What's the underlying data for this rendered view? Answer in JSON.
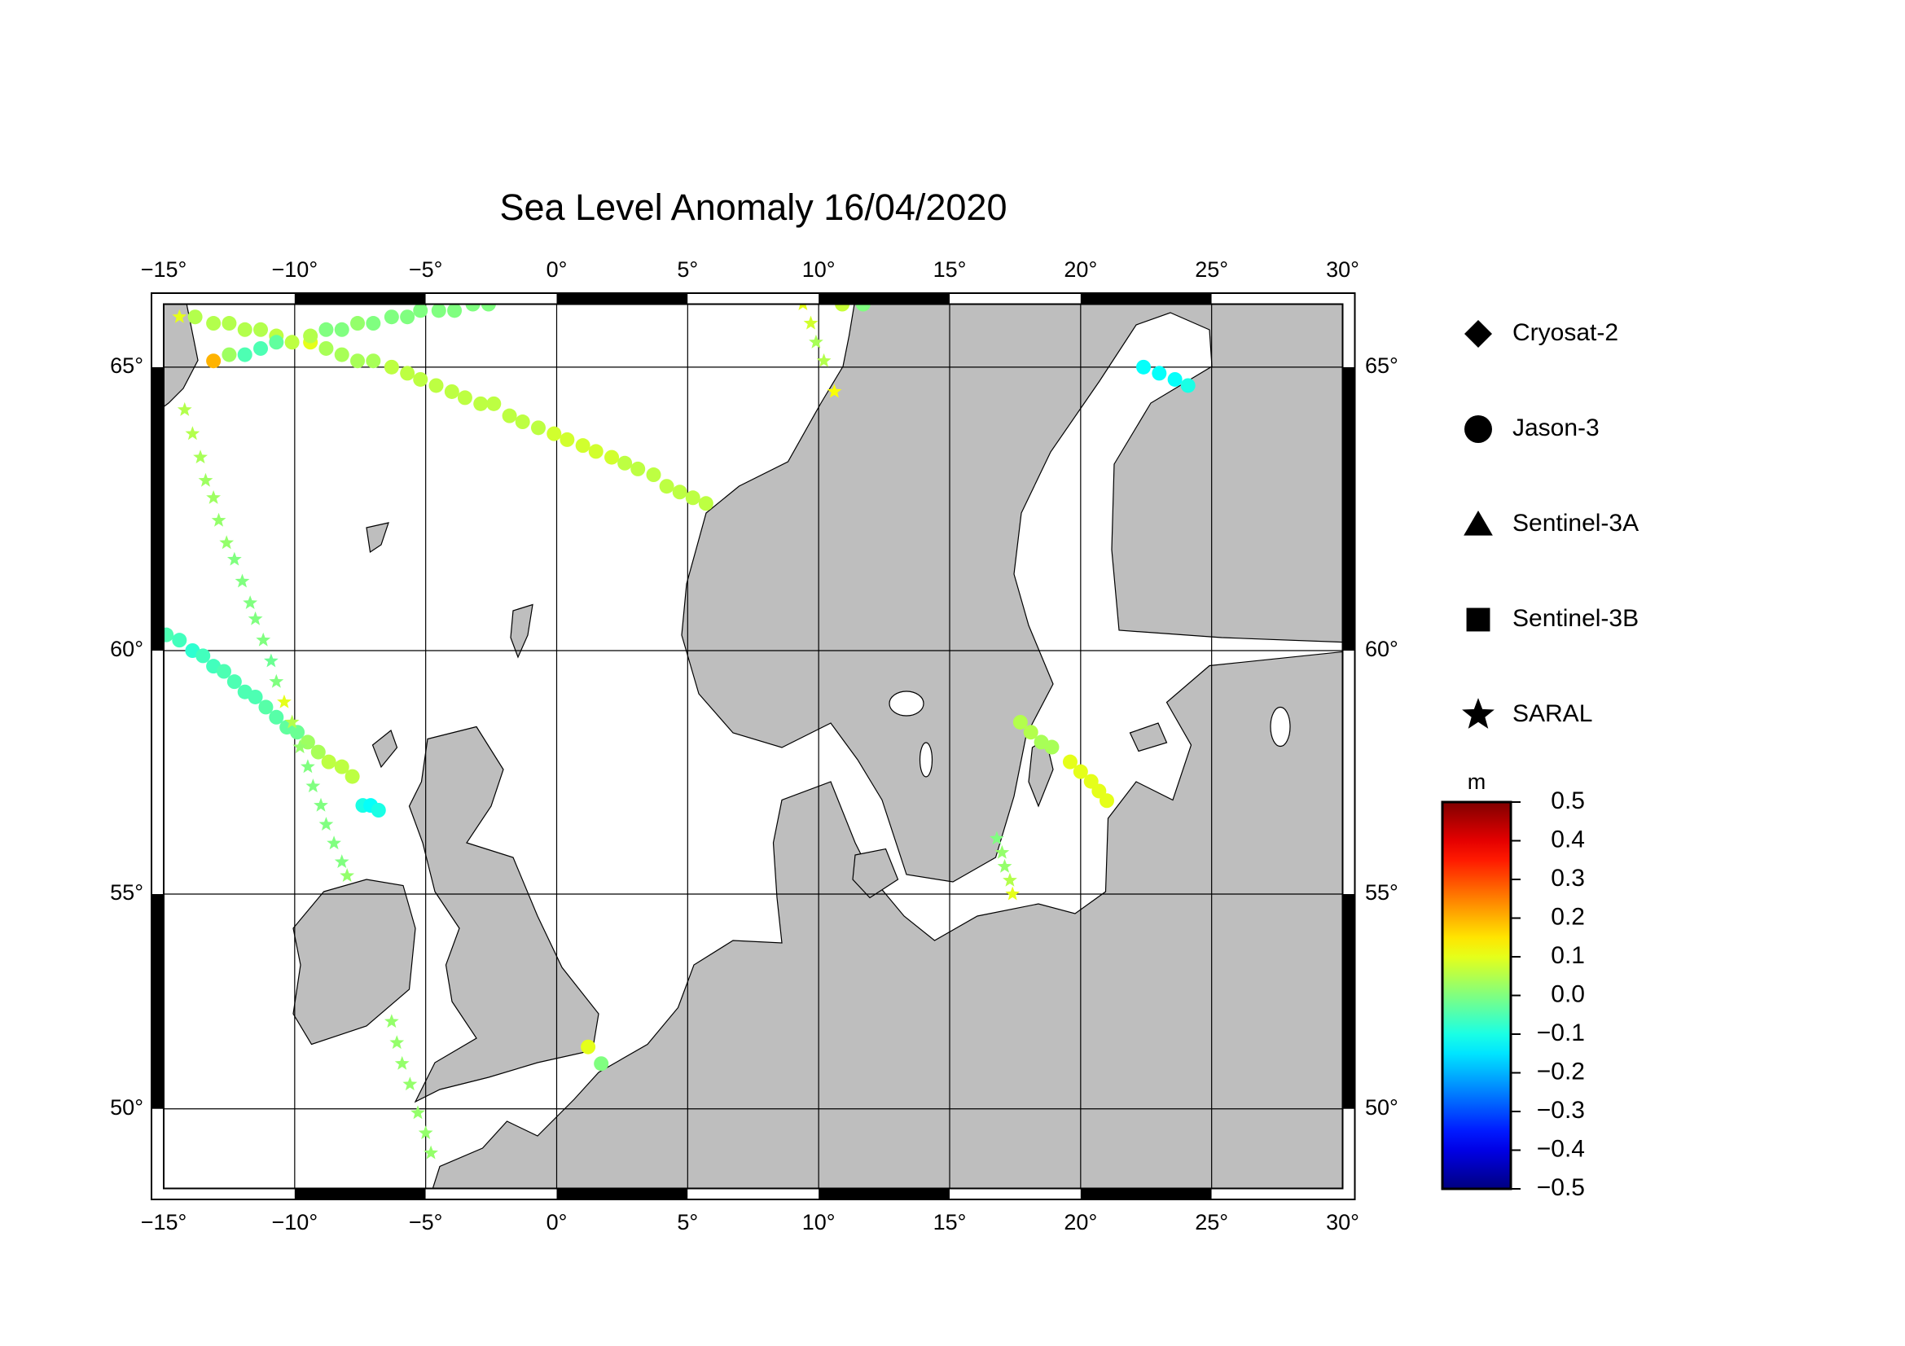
{
  "chart_data": {
    "type": "map",
    "projection": "mercator",
    "title": "Sea Level Anomaly 16/04/2020",
    "xlim": [
      -15,
      30
    ],
    "ylim": [
      48,
      66
    ],
    "xticks": [
      {
        "value": -15,
        "label": "−15°"
      },
      {
        "value": -10,
        "label": "−10°"
      },
      {
        "value": -5,
        "label": "−5°"
      },
      {
        "value": 0,
        "label": "0°"
      },
      {
        "value": 5,
        "label": "5°"
      },
      {
        "value": 10,
        "label": "10°"
      },
      {
        "value": 15,
        "label": "15°"
      },
      {
        "value": 20,
        "label": "20°"
      },
      {
        "value": 25,
        "label": "25°"
      },
      {
        "value": 30,
        "label": "30°"
      }
    ],
    "yticks": [
      {
        "value": 50,
        "label": "50°"
      },
      {
        "value": 55,
        "label": "55°"
      },
      {
        "value": 60,
        "label": "60°"
      },
      {
        "value": 65,
        "label": "65°"
      }
    ],
    "grid": true,
    "legend": "right",
    "colormap": "jet",
    "clim": [
      -0.5,
      0.5
    ],
    "colorbar_label": "m",
    "colorbar_ticks": [
      0.5,
      0.4,
      0.3,
      0.2,
      0.1,
      {
        "value": 0,
        "label": "0.0"
      },
      {
        "value": -0.1,
        "label": "−0.1"
      },
      {
        "value": -0.2,
        "label": "−0.2"
      },
      {
        "value": -0.3,
        "label": "−0.3"
      },
      {
        "value": -0.4,
        "label": "−0.4"
      },
      {
        "value": -0.5,
        "label": "−0.5"
      }
    ],
    "series": [
      {
        "name": "Cryosat-2",
        "marker": "diamond",
        "x": [],
        "y": [],
        "values": []
      },
      {
        "name": "Jason-3",
        "marker": "circle",
        "x": [
          -13.8,
          -13.1,
          -12.5,
          -11.9,
          -11.3,
          -10.7,
          -10.1,
          -9.4,
          -8.8,
          -8.2,
          -7.6,
          -7.0,
          -6.3,
          -5.7,
          -5.2,
          -4.6,
          -4.0,
          -3.5,
          -2.9,
          -2.4,
          -1.8,
          -1.3,
          -0.7,
          -0.1,
          0.4,
          1.0,
          1.5,
          2.1,
          2.6,
          3.1,
          3.7,
          4.2,
          4.7,
          5.2,
          5.7,
          -13.1,
          -12.5,
          -11.9,
          -11.3,
          -10.7,
          -9.4,
          -8.8,
          -8.2,
          -7.6,
          -7.0,
          -6.3,
          -5.7,
          -5.2,
          -4.5,
          -3.9,
          -3.2,
          -2.6,
          -14.9,
          -14.4,
          -13.9,
          -13.5,
          -13.1,
          -12.7,
          -12.3,
          -11.9,
          -11.5,
          -11.1,
          -10.7,
          -10.3,
          -9.9,
          -9.5,
          -9.1,
          -8.7,
          -8.2,
          -7.8,
          -7.4,
          -7.1,
          -6.8,
          10.9,
          11.7,
          22.4,
          23.0,
          23.6,
          24.1,
          17.7,
          18.1,
          18.5,
          18.9,
          19.6,
          20.0,
          20.4,
          20.7,
          21.0,
          1.2,
          1.7
        ],
        "y": [
          65.8,
          65.7,
          65.7,
          65.6,
          65.6,
          65.5,
          65.4,
          65.4,
          65.3,
          65.2,
          65.1,
          65.1,
          65.0,
          64.9,
          64.8,
          64.7,
          64.6,
          64.5,
          64.4,
          64.4,
          64.2,
          64.1,
          64.0,
          63.9,
          63.8,
          63.7,
          63.6,
          63.5,
          63.4,
          63.3,
          63.2,
          63.0,
          62.9,
          62.8,
          62.7,
          65.1,
          65.2,
          65.2,
          65.3,
          65.4,
          65.5,
          65.6,
          65.6,
          65.7,
          65.7,
          65.8,
          65.8,
          65.9,
          65.9,
          65.9,
          66.0,
          66.0,
          60.3,
          60.2,
          60.0,
          59.9,
          59.7,
          59.6,
          59.4,
          59.2,
          59.1,
          58.9,
          58.7,
          58.5,
          58.4,
          58.2,
          58.0,
          57.8,
          57.7,
          57.5,
          56.9,
          56.9,
          56.8,
          66.0,
          66.0,
          65.0,
          64.9,
          64.8,
          64.7,
          58.6,
          58.4,
          58.2,
          58.1,
          57.8,
          57.6,
          57.4,
          57.2,
          57.0,
          51.5,
          51.1
        ],
        "values": [
          0.05,
          0.05,
          0.05,
          0.05,
          0.05,
          0.06,
          0.06,
          0.1,
          0.04,
          0.04,
          0.04,
          0.04,
          0.06,
          0.06,
          0.06,
          0.06,
          0.06,
          0.06,
          0.06,
          0.06,
          0.06,
          0.06,
          0.06,
          0.08,
          0.08,
          0.08,
          0.08,
          0.08,
          0.06,
          0.06,
          0.06,
          0.06,
          0.06,
          0.06,
          0.06,
          0.2,
          0.03,
          -0.05,
          -0.05,
          -0.03,
          0.05,
          0.0,
          0.0,
          0.02,
          0.0,
          0.0,
          0.0,
          0.0,
          0.0,
          0.0,
          0.0,
          0.0,
          -0.05,
          -0.06,
          -0.08,
          -0.06,
          -0.06,
          -0.05,
          -0.05,
          -0.05,
          -0.05,
          -0.04,
          -0.04,
          -0.03,
          -0.02,
          0.03,
          0.04,
          0.06,
          0.06,
          0.06,
          -0.1,
          -0.12,
          -0.1,
          0.07,
          0.0,
          -0.12,
          -0.12,
          -0.12,
          -0.1,
          0.05,
          0.05,
          0.04,
          0.04,
          0.1,
          0.1,
          0.1,
          0.1,
          0.1,
          0.1,
          0.0
        ]
      },
      {
        "name": "Sentinel-3A",
        "marker": "triangle",
        "x": [],
        "y": [],
        "values": []
      },
      {
        "name": "Sentinel-3B",
        "marker": "square",
        "x": [],
        "y": [],
        "values": []
      },
      {
        "name": "SARAL",
        "marker": "star",
        "x": [
          -14.4,
          -14.2,
          -13.9,
          -13.6,
          -13.4,
          -13.1,
          -12.9,
          -12.6,
          -12.3,
          -12.0,
          -11.7,
          -11.5,
          -11.2,
          -10.9,
          -10.7,
          -10.4,
          -10.1,
          -9.8,
          -9.5,
          -9.3,
          -9.0,
          -8.8,
          -8.5,
          -8.2,
          -8.0,
          -6.3,
          -6.1,
          -5.9,
          -5.6,
          -5.3,
          -5.0,
          -4.8,
          9.4,
          9.7,
          9.9,
          10.2,
          10.6,
          16.8,
          17.0,
          17.1,
          17.3,
          17.4
        ],
        "y": [
          65.8,
          64.3,
          63.9,
          63.5,
          63.1,
          62.8,
          62.4,
          62.0,
          61.7,
          61.3,
          60.9,
          60.6,
          60.2,
          59.8,
          59.4,
          59.0,
          58.6,
          58.1,
          57.7,
          57.3,
          56.9,
          56.5,
          56.1,
          55.7,
          55.4,
          52.1,
          51.6,
          51.1,
          50.6,
          49.9,
          49.4,
          48.9,
          66.0,
          65.7,
          65.4,
          65.1,
          64.6,
          56.2,
          55.9,
          55.6,
          55.3,
          55.0
        ],
        "values": [
          0.1,
          0.05,
          0.05,
          0.04,
          0.03,
          0.03,
          0.02,
          0.02,
          0.0,
          0.0,
          0.0,
          0.0,
          0.0,
          -0.02,
          0.0,
          0.1,
          0.05,
          0.02,
          0.0,
          0.0,
          0.0,
          0.0,
          0.0,
          0.0,
          0.02,
          0.02,
          0.02,
          0.02,
          0.02,
          0.02,
          0.02,
          0.02,
          0.1,
          0.08,
          0.04,
          0.05,
          0.12,
          0.0,
          0.02,
          0.02,
          0.05,
          0.1
        ]
      }
    ]
  }
}
